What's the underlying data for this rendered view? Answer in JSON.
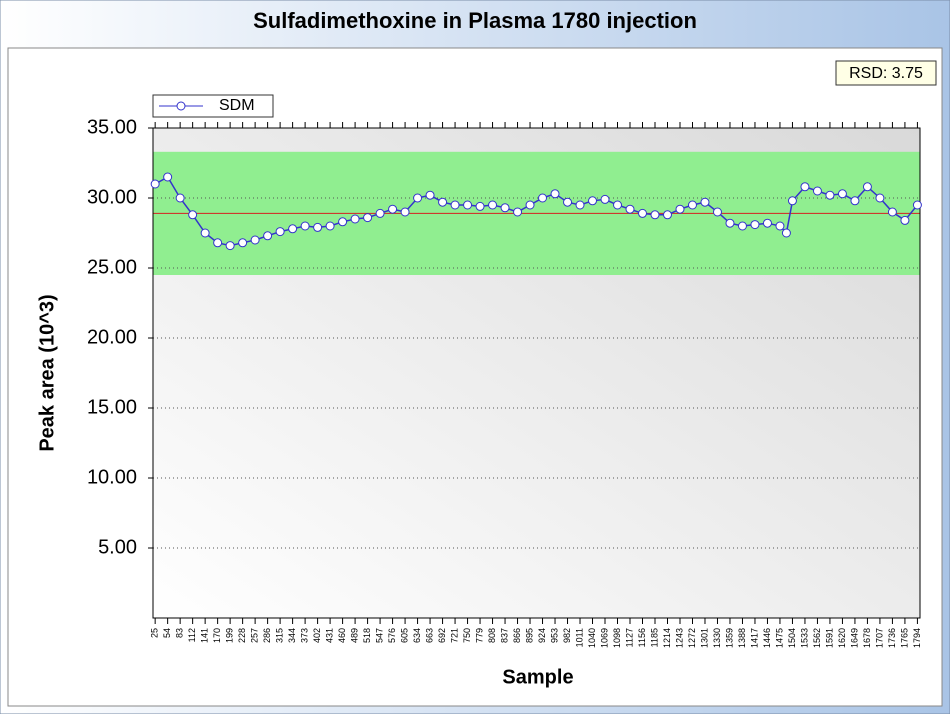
{
  "chart_data": {
    "type": "line",
    "title": "Sulfadimethoxine in Plasma 1780 injection",
    "annotation": "RSD: 3.75",
    "x_label": "Sample",
    "y_label": "Peak area (10^3)",
    "grid": true,
    "legend": "top-left",
    "band": [
      24.5,
      33.3
    ],
    "band_color": "#90ee90",
    "mean": 28.9,
    "mean_color": "#d62020",
    "xlim": [
      20,
      1800
    ],
    "ylim": [
      0,
      35
    ],
    "xticks": [
      25,
      54,
      83,
      112,
      141,
      170,
      199,
      228,
      257,
      286,
      315,
      344,
      373,
      402,
      431,
      460,
      489,
      518,
      547,
      576,
      605,
      634,
      663,
      692,
      721,
      750,
      779,
      808,
      837,
      866,
      895,
      924,
      953,
      982,
      1011,
      1040,
      1069,
      1098,
      1127,
      1156,
      1185,
      1214,
      1243,
      1272,
      1301,
      1330,
      1359,
      1388,
      1417,
      1446,
      1475,
      1504,
      1533,
      1562,
      1591,
      1620,
      1649,
      1678,
      1707,
      1736,
      1765,
      1794
    ],
    "yticks": [
      {
        "value": 5,
        "label": "5.00"
      },
      {
        "value": 10,
        "label": "10.00"
      },
      {
        "value": 15,
        "label": "15.00"
      },
      {
        "value": 20,
        "label": "20.00"
      },
      {
        "value": 25,
        "label": "25.00"
      },
      {
        "value": 30,
        "label": "30.00"
      },
      {
        "value": 35,
        "label": "35.00"
      }
    ],
    "series": [
      {
        "name": "SDM",
        "color": "#3333cc",
        "x": [
          25,
          54,
          83,
          112,
          141,
          170,
          199,
          228,
          257,
          286,
          315,
          344,
          373,
          402,
          431,
          460,
          489,
          518,
          547,
          576,
          605,
          634,
          663,
          692,
          721,
          750,
          779,
          808,
          837,
          866,
          895,
          924,
          953,
          982,
          1011,
          1040,
          1069,
          1098,
          1127,
          1156,
          1185,
          1214,
          1243,
          1272,
          1301,
          1330,
          1359,
          1388,
          1417,
          1446,
          1475,
          1490,
          1504,
          1533,
          1562,
          1591,
          1620,
          1649,
          1678,
          1707,
          1736,
          1765,
          1794
        ],
        "values": [
          31,
          31.5,
          30,
          28.8,
          27.5,
          26.8,
          26.6,
          26.8,
          27,
          27.3,
          27.6,
          27.8,
          28,
          27.9,
          28,
          28.3,
          28.5,
          28.6,
          28.9,
          29.2,
          29,
          30,
          30.2,
          29.7,
          29.5,
          29.5,
          29.4,
          29.5,
          29.3,
          29,
          29.5,
          30,
          30.3,
          29.7,
          29.5,
          29.8,
          29.9,
          29.5,
          29.2,
          28.9,
          28.8,
          28.8,
          29.2,
          29.5,
          29.7,
          29,
          28.2,
          28,
          28.1,
          28.2,
          28,
          27.5,
          29.8,
          30.8,
          30.5,
          30.2,
          30.3,
          29.8,
          30.8,
          30,
          29,
          28.4,
          29.5
        ]
      }
    ]
  }
}
